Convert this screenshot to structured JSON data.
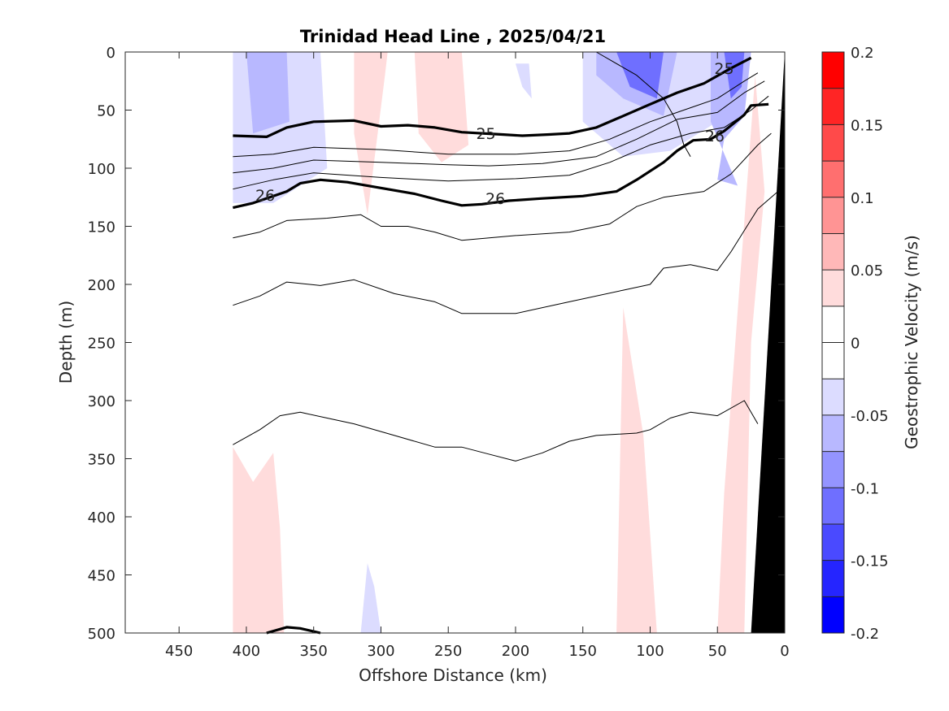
{
  "chart_data": {
    "type": "contour",
    "title": "Trinidad Head Line , 2025/04/21",
    "xlabel": "Offshore Distance (km)",
    "ylabel": "Depth (m)",
    "colorbar_label": "Geostrophic Velocity (m/s)",
    "xlim": [
      490,
      0
    ],
    "ylim": [
      0,
      500
    ],
    "x_reversed": true,
    "y_reversed": true,
    "xticks": [
      450,
      400,
      350,
      300,
      250,
      200,
      150,
      100,
      50,
      0
    ],
    "yticks": [
      0,
      50,
      100,
      150,
      200,
      250,
      300,
      350,
      400,
      450,
      500
    ],
    "colorbar": {
      "range": [
        -0.2,
        0.2
      ],
      "tick_values": [
        0.2,
        0.15,
        0.1,
        0.05,
        0,
        -0.05,
        -0.1,
        -0.15,
        -0.2
      ],
      "tick_labels": [
        "0.2",
        "0.15",
        "0.1",
        "0.05",
        "0",
        "-0.05",
        "-0.1",
        "-0.15",
        "-0.2"
      ],
      "colors_top_to_bottom": [
        "#ff0000",
        "#ff2525",
        "#ff4a4a",
        "#ff6f6f",
        "#ff9494",
        "#ffb8b8",
        "#ffdcdc",
        "#ffffff",
        "#ffffff",
        "#dcdcff",
        "#b8b8ff",
        "#9494ff",
        "#6f6fff",
        "#4a4aff",
        "#2525ff",
        "#0000ff"
      ]
    },
    "velocity_regions": [
      {
        "level": -0.05,
        "color": "#dcdcff",
        "points": [
          [
            410,
            0
          ],
          [
            345,
            0
          ],
          [
            340,
            100
          ],
          [
            380,
            130
          ],
          [
            410,
            130
          ]
        ]
      },
      {
        "level": -0.08,
        "color": "#b8b8ff",
        "points": [
          [
            400,
            0
          ],
          [
            370,
            0
          ],
          [
            368,
            60
          ],
          [
            395,
            70
          ]
        ]
      },
      {
        "level": -0.03,
        "color": "#dcdcff",
        "points": [
          [
            200,
            10
          ],
          [
            190,
            10
          ],
          [
            188,
            40
          ],
          [
            195,
            30
          ]
        ]
      },
      {
        "level": 0.04,
        "color": "#ffdcdc",
        "points": [
          [
            320,
            0
          ],
          [
            295,
            0
          ],
          [
            297,
            20
          ],
          [
            310,
            140
          ],
          [
            320,
            70
          ]
        ]
      },
      {
        "level": 0.04,
        "color": "#ffdcdc",
        "points": [
          [
            275,
            0
          ],
          [
            240,
            0
          ],
          [
            235,
            80
          ],
          [
            255,
            95
          ],
          [
            272,
            70
          ]
        ]
      },
      {
        "level": -0.04,
        "color": "#dcdcff",
        "points": [
          [
            150,
            0
          ],
          [
            50,
            0
          ],
          [
            45,
            40
          ],
          [
            50,
            60
          ],
          [
            85,
            85
          ],
          [
            120,
            90
          ],
          [
            150,
            60
          ]
        ]
      },
      {
        "level": -0.08,
        "color": "#b8b8ff",
        "points": [
          [
            140,
            0
          ],
          [
            80,
            0
          ],
          [
            90,
            55
          ],
          [
            120,
            40
          ],
          [
            140,
            20
          ]
        ]
      },
      {
        "level": -0.12,
        "color": "#6f6fff",
        "points": [
          [
            125,
            0
          ],
          [
            90,
            0
          ],
          [
            95,
            40
          ],
          [
            115,
            30
          ]
        ]
      },
      {
        "level": -0.06,
        "color": "#b8b8ff",
        "points": [
          [
            55,
            0
          ],
          [
            25,
            0
          ],
          [
            30,
            55
          ],
          [
            45,
            75
          ],
          [
            50,
            110
          ],
          [
            35,
            115
          ],
          [
            55,
            60
          ]
        ]
      },
      {
        "level": -0.12,
        "color": "#6f6fff",
        "points": [
          [
            45,
            0
          ],
          [
            30,
            0
          ],
          [
            32,
            30
          ],
          [
            40,
            40
          ]
        ]
      },
      {
        "level": 0.04,
        "color": "#ffdcdc",
        "points": [
          [
            125,
            500
          ],
          [
            95,
            500
          ],
          [
            105,
            330
          ],
          [
            120,
            220
          ]
        ]
      },
      {
        "level": 0.04,
        "color": "#ffdcdc",
        "points": [
          [
            50,
            500
          ],
          [
            30,
            500
          ],
          [
            25,
            250
          ],
          [
            15,
            120
          ],
          [
            22,
            20
          ],
          [
            45,
            380
          ]
        ]
      },
      {
        "level": 0.04,
        "color": "#ffdcdc",
        "points": [
          [
            410,
            500
          ],
          [
            372,
            500
          ],
          [
            375,
            410
          ],
          [
            380,
            345
          ],
          [
            395,
            370
          ],
          [
            410,
            340
          ]
        ]
      },
      {
        "level": -0.04,
        "color": "#dcdcff",
        "points": [
          [
            315,
            500
          ],
          [
            300,
            500
          ],
          [
            305,
            460
          ],
          [
            310,
            440
          ]
        ]
      }
    ],
    "density_contours": [
      {
        "level": "24.8",
        "bold": false,
        "labels": [],
        "points": [
          [
            140,
            0
          ],
          [
            110,
            20
          ],
          [
            90,
            40
          ],
          [
            80,
            60
          ],
          [
            75,
            80
          ],
          [
            70,
            90
          ]
        ]
      },
      {
        "level": "25",
        "bold": true,
        "labels": [
          {
            "text": "25",
            "x": 222,
            "y": 70
          },
          {
            "text": "25",
            "x": 45,
            "y": 14
          }
        ],
        "points": [
          [
            410,
            72
          ],
          [
            385,
            73
          ],
          [
            370,
            65
          ],
          [
            350,
            60
          ],
          [
            320,
            59
          ],
          [
            300,
            64
          ],
          [
            280,
            63
          ],
          [
            260,
            65
          ],
          [
            240,
            69
          ],
          [
            210,
            71
          ],
          [
            195,
            72
          ],
          [
            175,
            71
          ],
          [
            160,
            70
          ],
          [
            140,
            65
          ],
          [
            120,
            55
          ],
          [
            100,
            45
          ],
          [
            80,
            35
          ],
          [
            60,
            27
          ],
          [
            40,
            14
          ],
          [
            25,
            5
          ]
        ]
      },
      {
        "level": "25.2",
        "bold": false,
        "labels": [],
        "points": [
          [
            410,
            90
          ],
          [
            380,
            88
          ],
          [
            350,
            82
          ],
          [
            300,
            84
          ],
          [
            250,
            88
          ],
          [
            200,
            88
          ],
          [
            160,
            85
          ],
          [
            130,
            75
          ],
          [
            100,
            60
          ],
          [
            70,
            48
          ],
          [
            50,
            40
          ],
          [
            30,
            25
          ],
          [
            20,
            18
          ]
        ]
      },
      {
        "level": "25.4",
        "bold": false,
        "labels": [],
        "points": [
          [
            410,
            104
          ],
          [
            380,
            100
          ],
          [
            350,
            93
          ],
          [
            300,
            95
          ],
          [
            250,
            97
          ],
          [
            220,
            98
          ],
          [
            180,
            96
          ],
          [
            140,
            90
          ],
          [
            110,
            75
          ],
          [
            80,
            58
          ],
          [
            50,
            52
          ],
          [
            30,
            35
          ],
          [
            15,
            25
          ]
        ]
      },
      {
        "level": "25.6",
        "bold": false,
        "labels": [],
        "points": [
          [
            410,
            118
          ],
          [
            380,
            110
          ],
          [
            350,
            104
          ],
          [
            300,
            108
          ],
          [
            250,
            111
          ],
          [
            200,
            109
          ],
          [
            160,
            106
          ],
          [
            130,
            95
          ],
          [
            100,
            80
          ],
          [
            70,
            70
          ],
          [
            45,
            65
          ],
          [
            25,
            50
          ],
          [
            12,
            38
          ]
        ]
      },
      {
        "level": "26",
        "bold": true,
        "labels": [
          {
            "text": "26",
            "x": 386,
            "y": 123
          },
          {
            "text": "26",
            "x": 215,
            "y": 126
          },
          {
            "text": "26",
            "x": 52,
            "y": 72
          }
        ],
        "points": [
          [
            410,
            134
          ],
          [
            395,
            130
          ],
          [
            370,
            120
          ],
          [
            360,
            113
          ],
          [
            345,
            110
          ],
          [
            325,
            112
          ],
          [
            305,
            116
          ],
          [
            275,
            122
          ],
          [
            255,
            128
          ],
          [
            240,
            132
          ],
          [
            225,
            131
          ],
          [
            205,
            128
          ],
          [
            180,
            126
          ],
          [
            150,
            124
          ],
          [
            125,
            120
          ],
          [
            110,
            110
          ],
          [
            90,
            95
          ],
          [
            80,
            85
          ],
          [
            68,
            76
          ],
          [
            55,
            75
          ],
          [
            45,
            68
          ],
          [
            30,
            54
          ],
          [
            25,
            46
          ],
          [
            12,
            45
          ]
        ]
      },
      {
        "level": "26.3",
        "bold": false,
        "labels": [],
        "points": [
          [
            410,
            160
          ],
          [
            390,
            155
          ],
          [
            370,
            145
          ],
          [
            340,
            143
          ],
          [
            315,
            140
          ],
          [
            300,
            150
          ],
          [
            280,
            150
          ],
          [
            260,
            155
          ],
          [
            240,
            162
          ],
          [
            200,
            158
          ],
          [
            160,
            155
          ],
          [
            130,
            148
          ],
          [
            110,
            133
          ],
          [
            90,
            125
          ],
          [
            60,
            120
          ],
          [
            40,
            105
          ],
          [
            20,
            80
          ],
          [
            10,
            70
          ]
        ]
      },
      {
        "level": "26.5",
        "bold": false,
        "labels": [],
        "points": [
          [
            410,
            218
          ],
          [
            390,
            210
          ],
          [
            370,
            198
          ],
          [
            345,
            201
          ],
          [
            320,
            196
          ],
          [
            290,
            208
          ],
          [
            260,
            215
          ],
          [
            240,
            225
          ],
          [
            200,
            225
          ],
          [
            160,
            215
          ],
          [
            120,
            205
          ],
          [
            100,
            200
          ],
          [
            90,
            186
          ],
          [
            70,
            183
          ],
          [
            50,
            188
          ],
          [
            40,
            172
          ],
          [
            20,
            135
          ],
          [
            5,
            120
          ]
        ]
      },
      {
        "level": "26.7",
        "bold": false,
        "labels": [],
        "points": [
          [
            410,
            338
          ],
          [
            390,
            325
          ],
          [
            375,
            313
          ],
          [
            360,
            310
          ],
          [
            340,
            315
          ],
          [
            320,
            320
          ],
          [
            290,
            330
          ],
          [
            260,
            340
          ],
          [
            240,
            340
          ],
          [
            220,
            346
          ],
          [
            200,
            352
          ],
          [
            180,
            345
          ],
          [
            160,
            335
          ],
          [
            140,
            330
          ],
          [
            110,
            328
          ],
          [
            100,
            325
          ],
          [
            85,
            315
          ],
          [
            70,
            310
          ],
          [
            50,
            313
          ],
          [
            30,
            300
          ],
          [
            20,
            320
          ]
        ]
      },
      {
        "level": "27",
        "bold": true,
        "labels": [],
        "points": [
          [
            385,
            500
          ],
          [
            370,
            495
          ],
          [
            360,
            496
          ],
          [
            345,
            500
          ]
        ]
      }
    ],
    "land_mask": {
      "color": "#000000",
      "points": [
        [
          0,
          0
        ],
        [
          0,
          500
        ],
        [
          25,
          500
        ]
      ]
    },
    "colorbar_horizontal_lines_at": [
      0.2,
      0.175,
      0.15,
      0.125,
      0.1,
      0.075,
      0.05,
      0.025,
      0,
      -0.025,
      -0.05,
      -0.075,
      -0.1,
      -0.125,
      -0.15,
      -0.175,
      -0.2
    ]
  }
}
